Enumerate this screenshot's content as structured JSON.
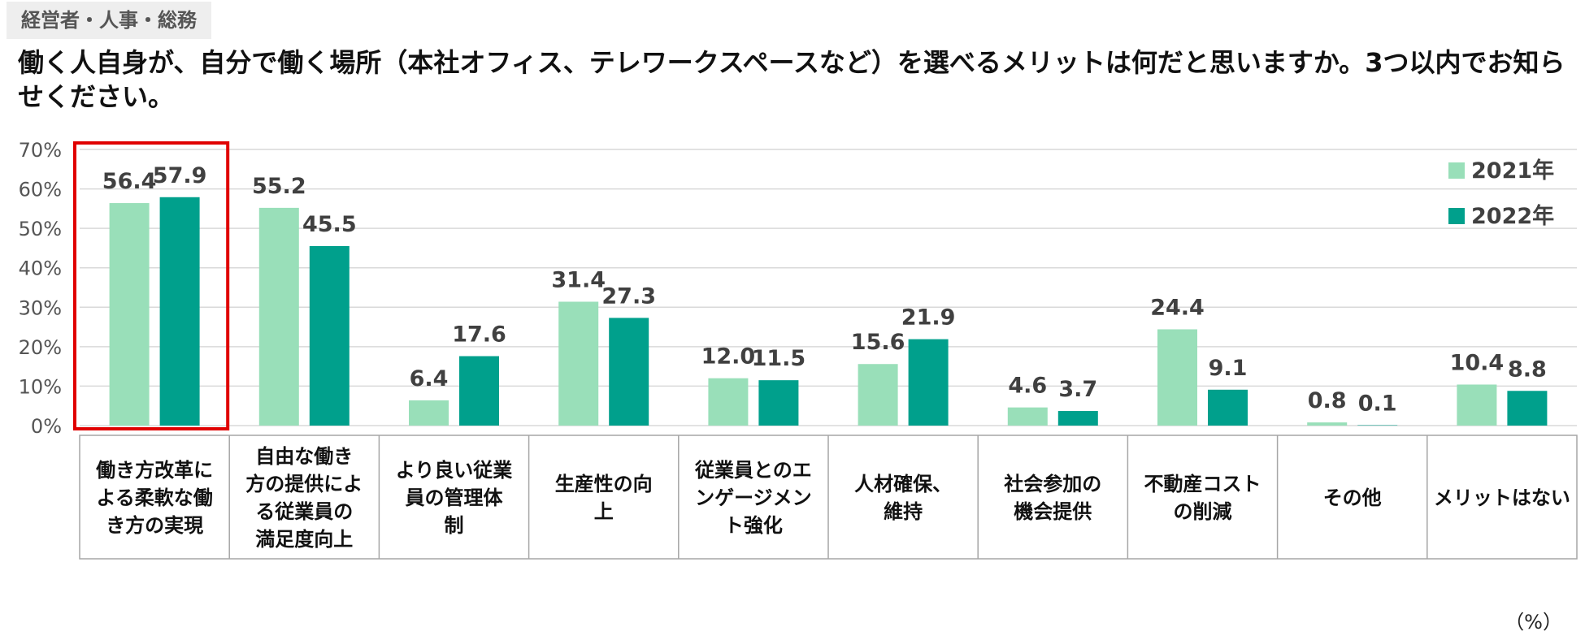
{
  "tag": "経営者・人事・総務",
  "title": "働く人自身が、自分で働く場所（本社オフィス、テレワークスペースなど）を選べるメリットは何だと思いますか。3つ以内でお知らせください。",
  "unit_label": "（%）",
  "colors": {
    "series_2021": "#99dfb9",
    "series_2022": "#00a08c",
    "highlight": "#e00000",
    "grid": "#d9d9d9",
    "axis_text": "#555555",
    "value_text": "#404040"
  },
  "chart_data": {
    "type": "bar",
    "title": "働く人自身が、自分で働く場所（本社オフィス、テレワークスペースなど）を選べるメリットは何だと思いますか。3つ以内でお知らせください。",
    "xlabel": "",
    "ylabel": "",
    "ylim": [
      0,
      70
    ],
    "yticks": [
      0,
      10,
      20,
      30,
      40,
      50,
      60,
      70
    ],
    "ytick_labels": [
      "0%",
      "10%",
      "20%",
      "30%",
      "40%",
      "50%",
      "60%",
      "70%"
    ],
    "grid": true,
    "legend_position": "top-right",
    "highlighted_category_index": 0,
    "categories": [
      "働き方改革による柔軟な働き方の実現",
      "自由な働き方の提供による従業員の満足度向上",
      "より良い従業員の管理体制",
      "生産性の向上",
      "従業員とのエンゲージメント強化",
      "人材確保、維持",
      "社会参加の機会提供",
      "不動産コストの削減",
      "その他",
      "メリットはない"
    ],
    "category_lines": [
      [
        "働き方改革に",
        "よる柔軟な働",
        "き方の実現"
      ],
      [
        "自由な働き",
        "方の提供によ",
        "る従業員の",
        "満足度向上"
      ],
      [
        "より良い従業",
        "員の管理体",
        "制"
      ],
      [
        "生産性の向",
        "上"
      ],
      [
        "従業員とのエ",
        "ンゲージメン",
        "ト強化"
      ],
      [
        "人材確保、",
        "維持"
      ],
      [
        "社会参加の",
        "機会提供"
      ],
      [
        "不動産コスト",
        "の削減"
      ],
      [
        "その他"
      ],
      [
        "メリットはない"
      ]
    ],
    "series": [
      {
        "name": "2021年",
        "values": [
          56.4,
          55.2,
          6.4,
          31.4,
          12.0,
          15.6,
          4.6,
          24.4,
          0.8,
          10.4
        ],
        "labels": [
          "56.4",
          "55.2",
          "6.4",
          "31.4",
          "12.0",
          "15.6",
          "4.6",
          "24.4",
          "0.8",
          "10.4"
        ]
      },
      {
        "name": "2022年",
        "values": [
          57.9,
          45.5,
          17.6,
          27.3,
          11.5,
          21.9,
          3.7,
          9.1,
          0.1,
          8.8
        ],
        "labels": [
          "57.9",
          "45.5",
          "17.6",
          "27.3",
          "11.5",
          "21.9",
          "3.7",
          "9.1",
          "0.1",
          "8.8"
        ]
      }
    ]
  }
}
